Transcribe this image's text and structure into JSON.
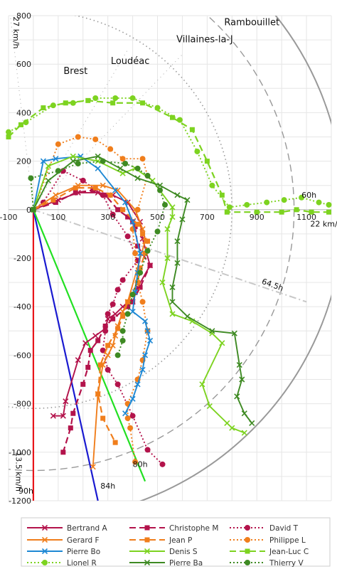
{
  "chart_data": {
    "type": "scatter",
    "xlim": [
      -100,
      1200
    ],
    "ylim": [
      -1200,
      800
    ],
    "x_ticks": [
      "-100",
      "100",
      "300",
      "500",
      "700",
      "900",
      "1100"
    ],
    "y_ticks": [
      "800",
      "600",
      "400",
      "200",
      "0",
      "-200",
      "-400",
      "-600",
      "-800",
      "-1000",
      "-1200"
    ],
    "grid": true,
    "places": [
      {
        "label": "Rambouillet",
        "x": 880,
        "y": 760
      },
      {
        "label": "Villaines-la-J",
        "x": 690,
        "y": 690
      },
      {
        "label": "Loudéac",
        "x": 390,
        "y": 600
      },
      {
        "label": "Brest",
        "x": 170,
        "y": 560
      }
    ],
    "speed_labels": [
      {
        "label": "27 km/h",
        "x": -80,
        "y": 730
      },
      {
        "label": "22 km/h",
        "x": 1180,
        "y": -70
      },
      {
        "label": "13.5 km/h",
        "x": -70,
        "y": -1080
      }
    ],
    "time_labels": [
      {
        "label": "60h",
        "x": 1110,
        "y": 50
      },
      {
        "label": "64.5h",
        "x": 960,
        "y": -320
      },
      {
        "label": "80h",
        "x": 430,
        "y": -1060
      },
      {
        "label": "84h",
        "x": 300,
        "y": -1150
      },
      {
        "label": "90h",
        "x": -30,
        "y": -1170
      }
    ],
    "guide_lines": [
      {
        "time": "90h",
        "color": "#e8161a",
        "x": [
          0,
          0
        ],
        "y": [
          0,
          -1200
        ]
      },
      {
        "time": "84h",
        "color": "#1a1ad0",
        "x": [
          0,
          260
        ],
        "y": [
          0,
          -1200
        ]
      },
      {
        "time": "80h",
        "color": "#22e022",
        "x": [
          0,
          450
        ],
        "y": [
          0,
          -1120
        ]
      },
      {
        "time": "64.5h",
        "color": "#c8c8c8",
        "x": [
          0,
          1100
        ],
        "y": [
          0,
          -380
        ]
      }
    ],
    "series": [
      {
        "name": "Bertrand A",
        "color": "#b3134b",
        "dash": "solid",
        "marker": "x",
        "x": [
          0,
          100,
          180,
          260,
          320,
          380,
          430,
          440,
          470,
          420,
          400,
          360,
          330,
          300,
          290,
          250,
          210,
          180,
          130,
          120,
          80
        ],
        "y": [
          0,
          40,
          70,
          70,
          60,
          30,
          -50,
          -120,
          -230,
          -320,
          -380,
          -400,
          -430,
          -450,
          -490,
          -520,
          -550,
          -620,
          -790,
          -850,
          -850
        ]
      },
      {
        "name": "Christophe M",
        "color": "#b3134b",
        "dash": "dashed",
        "marker": "square",
        "x": [
          0,
          90,
          170,
          240,
          290,
          340,
          380,
          400,
          410,
          420,
          470,
          430,
          400,
          380,
          320,
          290,
          260,
          230,
          220,
          200,
          160,
          150,
          120
        ],
        "y": [
          0,
          30,
          70,
          80,
          60,
          0,
          -30,
          -50,
          -70,
          -150,
          -230,
          -320,
          -380,
          -400,
          -450,
          -480,
          -540,
          -580,
          -650,
          -720,
          -840,
          -900,
          -1000
        ]
      },
      {
        "name": "David T",
        "color": "#b3134b",
        "dash": "dotted",
        "marker": "circle",
        "x": [
          0,
          40,
          120,
          200,
          280,
          320,
          380,
          420,
          360,
          340,
          320,
          300,
          290,
          280,
          300,
          340,
          400,
          460,
          520
        ],
        "y": [
          0,
          30,
          160,
          120,
          60,
          -20,
          -110,
          -210,
          -290,
          -330,
          -390,
          -430,
          -500,
          -580,
          -660,
          -720,
          -850,
          -990,
          -1050
        ]
      },
      {
        "name": "Gerard F",
        "color": "#f07e1c",
        "dash": "solid",
        "marker": "x",
        "x": [
          0,
          90,
          180,
          280,
          340,
          410,
          440,
          450,
          380,
          360,
          340,
          330,
          320,
          300,
          280,
          260,
          240
        ],
        "y": [
          0,
          60,
          100,
          100,
          80,
          0,
          -80,
          -130,
          -380,
          -420,
          -480,
          -520,
          -560,
          -600,
          -640,
          -760,
          -1060
        ]
      },
      {
        "name": "Jean P",
        "color": "#f07e1c",
        "dash": "dashed",
        "marker": "square",
        "x": [
          0,
          80,
          170,
          250,
          310,
          360,
          420,
          440,
          460,
          450,
          430,
          420,
          380,
          360,
          340,
          300,
          270,
          260,
          280,
          330
        ],
        "y": [
          0,
          40,
          90,
          90,
          60,
          0,
          -60,
          -100,
          -130,
          -180,
          -240,
          -300,
          -380,
          -440,
          -490,
          -560,
          -640,
          -760,
          -860,
          -960
        ]
      },
      {
        "name": "Philippe L",
        "color": "#f07e1c",
        "dash": "dotted",
        "marker": "circle",
        "x": [
          0,
          100,
          180,
          250,
          310,
          360,
          440,
          460,
          420,
          400,
          410,
          420,
          440,
          460,
          440,
          420,
          380,
          380,
          390,
          410
        ],
        "y": [
          0,
          270,
          300,
          290,
          250,
          210,
          210,
          140,
          0,
          -80,
          -180,
          -300,
          -380,
          -500,
          -620,
          -700,
          -800,
          -860,
          -900,
          -1040
        ]
      },
      {
        "name": "Pierre Bo",
        "color": "#1e88d4",
        "dash": "solid",
        "marker": "x",
        "x": [
          0,
          40,
          90,
          190,
          260,
          330,
          370,
          400,
          430,
          420,
          410,
          400,
          450,
          460,
          470,
          450,
          440,
          420,
          400,
          370
        ],
        "y": [
          0,
          200,
          210,
          220,
          170,
          80,
          30,
          -50,
          -180,
          -260,
          -340,
          -420,
          -460,
          -500,
          -540,
          -600,
          -660,
          -720,
          -780,
          -840
        ]
      },
      {
        "name": "Denis S",
        "color": "#7dd320",
        "dash": "solid",
        "marker": "x",
        "x": [
          0,
          60,
          160,
          260,
          360,
          410,
          480,
          560,
          560,
          540,
          540,
          520,
          560,
          640,
          720,
          760,
          680,
          710,
          780,
          800,
          850
        ],
        "y": [
          0,
          180,
          220,
          200,
          150,
          170,
          120,
          10,
          -30,
          -80,
          -200,
          -300,
          -430,
          -460,
          -510,
          -550,
          -720,
          -810,
          -880,
          -900,
          -920
        ]
      },
      {
        "name": "Jean-Luc C",
        "color": "#7dd320",
        "dash": "dashed",
        "marker": "square",
        "x": [
          -100,
          -50,
          40,
          130,
          220,
          320,
          440,
          560,
          640,
          700,
          760,
          780,
          900,
          1000,
          1060,
          1120,
          1190
        ],
        "y": [
          300,
          350,
          420,
          440,
          450,
          440,
          440,
          380,
          330,
          200,
          60,
          -10,
          -10,
          -10,
          0,
          -10,
          -10
        ]
      },
      {
        "name": "Lionel R",
        "color": "#7dd320",
        "dash": "dotted",
        "marker": "circle",
        "x": [
          -100,
          -30,
          80,
          160,
          250,
          330,
          400,
          500,
          590,
          660,
          720,
          790,
          860,
          940,
          1010,
          1080,
          1150,
          1190
        ],
        "y": [
          320,
          360,
          430,
          440,
          460,
          460,
          460,
          420,
          370,
          240,
          100,
          10,
          20,
          30,
          40,
          50,
          30,
          20
        ]
      },
      {
        "name": "Pierre Ba",
        "color": "#3e8a23",
        "dash": "solid",
        "marker": "x",
        "x": [
          0,
          60,
          160,
          260,
          350,
          420,
          510,
          580,
          620,
          600,
          580,
          580,
          560,
          560,
          620,
          720,
          810,
          830,
          840,
          820,
          850,
          880
        ],
        "y": [
          0,
          120,
          200,
          220,
          170,
          130,
          100,
          60,
          40,
          -40,
          -130,
          -220,
          -320,
          -380,
          -440,
          -500,
          -510,
          -640,
          -700,
          -770,
          -840,
          -880
        ]
      },
      {
        "name": "Thierry V",
        "color": "#3e8a23",
        "dash": "dotted",
        "marker": "circle",
        "x": [
          0,
          -10,
          100,
          180,
          280,
          370,
          420,
          460,
          510,
          530,
          500,
          460,
          430,
          400,
          380,
          360,
          360,
          340
        ],
        "y": [
          0,
          130,
          160,
          190,
          200,
          190,
          170,
          140,
          80,
          20,
          -90,
          -170,
          -260,
          -350,
          -430,
          -500,
          -540,
          -600
        ]
      }
    ]
  }
}
